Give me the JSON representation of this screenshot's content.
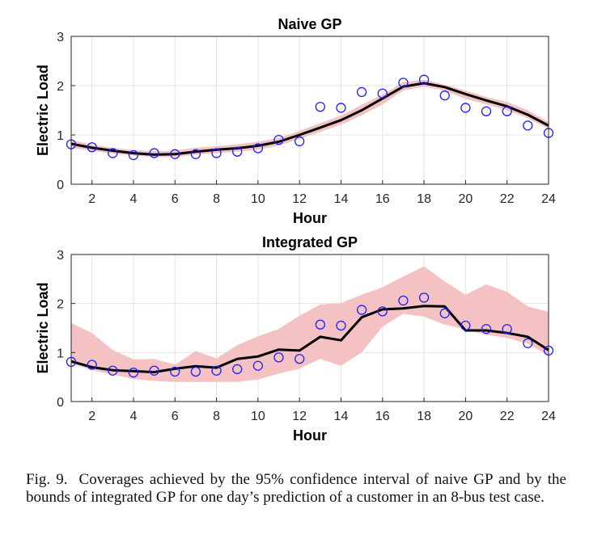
{
  "chart_data": [
    {
      "type": "line",
      "title": "Naive GP",
      "xlabel": "Hour",
      "ylabel": "Electric Load",
      "xlim": [
        1,
        24
      ],
      "ylim": [
        0,
        3
      ],
      "xticks": [
        2,
        4,
        6,
        8,
        10,
        12,
        14,
        16,
        18,
        20,
        22,
        24
      ],
      "yticks": [
        0,
        1,
        2,
        3
      ],
      "grid": true,
      "x": [
        1,
        2,
        3,
        4,
        5,
        6,
        7,
        8,
        9,
        10,
        11,
        12,
        13,
        14,
        15,
        16,
        17,
        18,
        19,
        20,
        21,
        22,
        23,
        24
      ],
      "series": [
        {
          "role": "band",
          "color": "#f4c2c2",
          "lower": [
            0.74,
            0.68,
            0.62,
            0.58,
            0.55,
            0.55,
            0.6,
            0.63,
            0.66,
            0.7,
            0.78,
            0.92,
            1.06,
            1.21,
            1.4,
            1.62,
            1.9,
            1.98,
            1.9,
            1.73,
            1.62,
            1.5,
            1.34,
            1.12
          ],
          "upper": [
            0.9,
            0.8,
            0.74,
            0.69,
            0.67,
            0.68,
            0.74,
            0.77,
            0.81,
            0.86,
            0.94,
            1.08,
            1.24,
            1.39,
            1.61,
            1.82,
            2.07,
            2.12,
            2.02,
            1.9,
            1.77,
            1.67,
            1.5,
            1.26
          ]
        },
        {
          "role": "line",
          "color": "#000000",
          "values": [
            0.82,
            0.74,
            0.68,
            0.63,
            0.6,
            0.61,
            0.66,
            0.7,
            0.73,
            0.78,
            0.86,
            1.0,
            1.15,
            1.3,
            1.5,
            1.74,
            1.98,
            2.05,
            1.97,
            1.83,
            1.7,
            1.58,
            1.41,
            1.19
          ]
        },
        {
          "role": "markers",
          "color": "#1f1fff",
          "values": [
            0.81,
            0.75,
            0.63,
            0.59,
            0.63,
            0.61,
            0.61,
            0.63,
            0.66,
            0.73,
            0.9,
            0.87,
            1.57,
            1.55,
            1.87,
            1.84,
            2.06,
            2.12,
            1.8,
            1.55,
            1.48,
            1.48,
            1.19,
            1.04
          ]
        }
      ]
    },
    {
      "type": "line",
      "title": "Integrated GP",
      "xlabel": "Hour",
      "ylabel": "Electric Load",
      "xlim": [
        1,
        24
      ],
      "ylim": [
        0,
        3
      ],
      "xticks": [
        2,
        4,
        6,
        8,
        10,
        12,
        14,
        16,
        18,
        20,
        22,
        24
      ],
      "yticks": [
        0,
        1,
        2,
        3
      ],
      "grid": true,
      "x": [
        1,
        2,
        3,
        4,
        5,
        6,
        7,
        8,
        9,
        10,
        11,
        12,
        13,
        14,
        15,
        16,
        17,
        18,
        19,
        20,
        21,
        22,
        23,
        24
      ],
      "series": [
        {
          "role": "band",
          "color": "#f4c2c2",
          "lower": [
            0.78,
            0.64,
            0.55,
            0.46,
            0.42,
            0.4,
            0.4,
            0.4,
            0.4,
            0.45,
            0.57,
            0.67,
            0.87,
            0.73,
            1.0,
            1.53,
            1.79,
            1.73,
            1.57,
            1.47,
            1.36,
            1.3,
            1.18,
            0.94
          ],
          "upper": [
            1.6,
            1.4,
            1.05,
            0.86,
            0.87,
            0.75,
            1.03,
            0.88,
            1.15,
            1.33,
            1.48,
            1.75,
            1.98,
            2.01,
            2.18,
            2.33,
            2.55,
            2.76,
            2.45,
            2.18,
            2.39,
            2.24,
            1.94,
            1.83
          ]
        },
        {
          "role": "line",
          "color": "#000000",
          "values": [
            0.82,
            0.7,
            0.64,
            0.62,
            0.6,
            0.67,
            0.72,
            0.69,
            0.87,
            0.92,
            1.06,
            1.04,
            1.32,
            1.25,
            1.72,
            1.88,
            1.9,
            1.95,
            1.94,
            1.45,
            1.45,
            1.4,
            1.32,
            1.05
          ]
        },
        {
          "role": "markers",
          "color": "#1f1fff",
          "values": [
            0.81,
            0.75,
            0.63,
            0.59,
            0.63,
            0.61,
            0.61,
            0.63,
            0.66,
            0.73,
            0.9,
            0.87,
            1.57,
            1.55,
            1.87,
            1.84,
            2.06,
            2.12,
            1.8,
            1.55,
            1.48,
            1.48,
            1.19,
            1.04
          ]
        }
      ]
    }
  ],
  "caption": {
    "label": "Fig. 9.",
    "text": "Coverages achieved by the 95% confidence interval of naive GP and by the bounds of integrated GP for one day’s prediction of a customer in an 8-bus test case."
  }
}
